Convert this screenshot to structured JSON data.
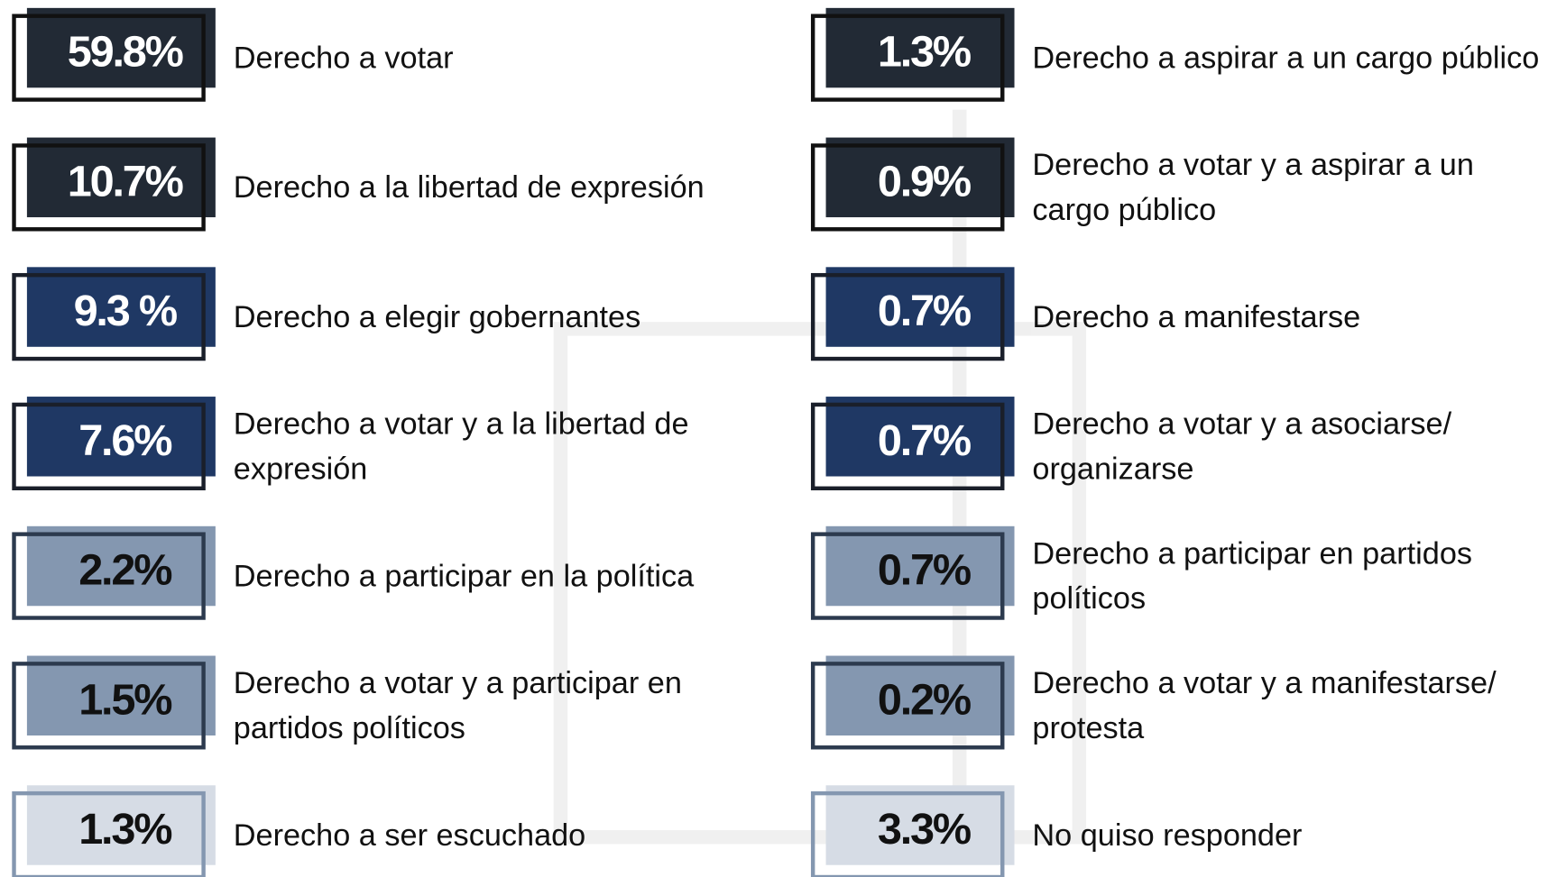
{
  "columns": [
    [
      {
        "value": "59.8%",
        "label": [
          "Derecho a votar"
        ]
      },
      {
        "value": "10.7%",
        "label": [
          "Derecho a la libertad de expresión"
        ]
      },
      {
        "value": "9.3 %",
        "label": [
          "Derecho a elegir gobernantes"
        ]
      },
      {
        "value": "7.6%",
        "label": [
          "Derecho a votar y a la libertad de",
          "expresión"
        ]
      },
      {
        "value": "2.2%",
        "label": [
          "Derecho a participar en la política"
        ]
      },
      {
        "value": "1.5%",
        "label": [
          "Derecho a votar y a participar en",
          "partidos políticos"
        ]
      },
      {
        "value": "1.3%",
        "label": [
          "Derecho a ser escuchado"
        ]
      }
    ],
    [
      {
        "value": "1.3%",
        "label": [
          "Derecho a aspirar a un cargo público"
        ]
      },
      {
        "value": "0.9%",
        "label": [
          "Derecho a votar y a aspirar a un",
          "cargo público"
        ]
      },
      {
        "value": "0.7%",
        "label": [
          "Derecho a manifestarse"
        ]
      },
      {
        "value": "0.7%",
        "label": [
          "Derecho a votar y a asociarse/",
          "organizarse"
        ]
      },
      {
        "value": "0.7%",
        "label": [
          "Derecho a participar en partidos",
          "políticos"
        ]
      },
      {
        "value": "0.2%",
        "label": [
          "Derecho a votar y a manifestarse/",
          "protesta"
        ]
      },
      {
        "value": "3.3%",
        "label": [
          "No quiso responder"
        ]
      }
    ]
  ]
}
